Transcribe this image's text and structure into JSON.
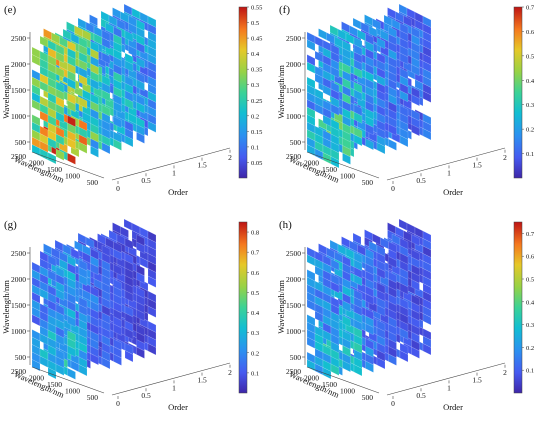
{
  "chart_data": [
    {
      "type": "heatmap",
      "panel_label": "(e)",
      "title": "",
      "xlabel": "Order",
      "ylabel": "Wavelength/nm",
      "zlabel": "Wavelength/nm",
      "x_ticks": [
        "0",
        "0.5",
        "1",
        "1.5",
        "2"
      ],
      "y_ticks": [
        "500",
        "1000",
        "1500",
        "2000",
        "2500"
      ],
      "z_ticks": [
        "500",
        "1000",
        "1500",
        "2000",
        "2500"
      ],
      "colorbar_ticks": [
        "0.05",
        "0.1",
        "0.15",
        "0.2",
        "0.25",
        "0.3",
        "0.35",
        "0.4",
        "0.45",
        "0.5",
        "0.55"
      ],
      "colorbar_range": [
        0,
        0.55
      ],
      "slice_orders": [
        0,
        0.25,
        0.5,
        0.75,
        1,
        1.25,
        1.5,
        1.75,
        2
      ],
      "slice_mean_level": [
        0.32,
        0.36,
        0.34,
        0.28,
        0.22,
        0.2,
        0.18,
        0.16,
        0.15
      ]
    },
    {
      "type": "heatmap",
      "panel_label": "(f)",
      "title": "",
      "xlabel": "Order",
      "ylabel": "Wavelength/nm",
      "zlabel": "Wavelength/nm",
      "x_ticks": [
        "0",
        "0.5",
        "1",
        "1.5",
        "2"
      ],
      "y_ticks": [
        "500",
        "1000",
        "1500",
        "2000",
        "2500"
      ],
      "z_ticks": [
        "500",
        "1000",
        "1500",
        "2000",
        "2500"
      ],
      "colorbar_ticks": [
        "0.1",
        "0.2",
        "0.3",
        "0.4",
        "0.5",
        "0.6",
        "0.7"
      ],
      "colorbar_range": [
        0,
        0.7
      ],
      "slice_orders": [
        0,
        0.25,
        0.5,
        0.75,
        1,
        1.25,
        1.5,
        1.75,
        2
      ],
      "slice_mean_level": [
        0.2,
        0.26,
        0.24,
        0.2,
        0.17,
        0.15,
        0.14,
        0.13,
        0.12
      ]
    },
    {
      "type": "heatmap",
      "panel_label": "(g)",
      "title": "",
      "xlabel": "Order",
      "ylabel": "Wavelength/nm",
      "zlabel": "Wavelength/nm",
      "x_ticks": [
        "0",
        "0.5",
        "1",
        "1.5",
        "2"
      ],
      "y_ticks": [
        "500",
        "1000",
        "1500",
        "2000",
        "2500"
      ],
      "z_ticks": [
        "500",
        "1000",
        "1500",
        "2000",
        "2500"
      ],
      "colorbar_ticks": [
        "0.1",
        "0.2",
        "0.3",
        "0.4",
        "0.5",
        "0.6",
        "0.7",
        "0.8"
      ],
      "colorbar_range": [
        0,
        0.85
      ],
      "slice_orders": [
        0,
        0.25,
        0.5,
        0.75,
        1,
        1.25,
        1.5,
        1.75,
        2
      ],
      "slice_mean_level": [
        0.2,
        0.24,
        0.2,
        0.16,
        0.12,
        0.1,
        0.09,
        0.08,
        0.08
      ]
    },
    {
      "type": "heatmap",
      "panel_label": "(h)",
      "title": "",
      "xlabel": "Order",
      "ylabel": "Wavelength/nm",
      "zlabel": "Wavelength/nm",
      "x_ticks": [
        "0",
        "0.5",
        "1",
        "1.5",
        "2"
      ],
      "y_ticks": [
        "500",
        "1000",
        "1500",
        "2000",
        "2500"
      ],
      "z_ticks": [
        "500",
        "1000",
        "1500",
        "2000",
        "2500"
      ],
      "colorbar_ticks": [
        "0.1",
        "0.2",
        "0.3",
        "0.4",
        "0.5",
        "0.6",
        "0.7"
      ],
      "colorbar_range": [
        0,
        0.75
      ],
      "slice_orders": [
        0,
        0.25,
        0.5,
        0.75,
        1,
        1.25,
        1.5,
        1.75,
        2
      ],
      "slice_mean_level": [
        0.18,
        0.22,
        0.2,
        0.16,
        0.13,
        0.11,
        0.1,
        0.09,
        0.09
      ]
    }
  ]
}
